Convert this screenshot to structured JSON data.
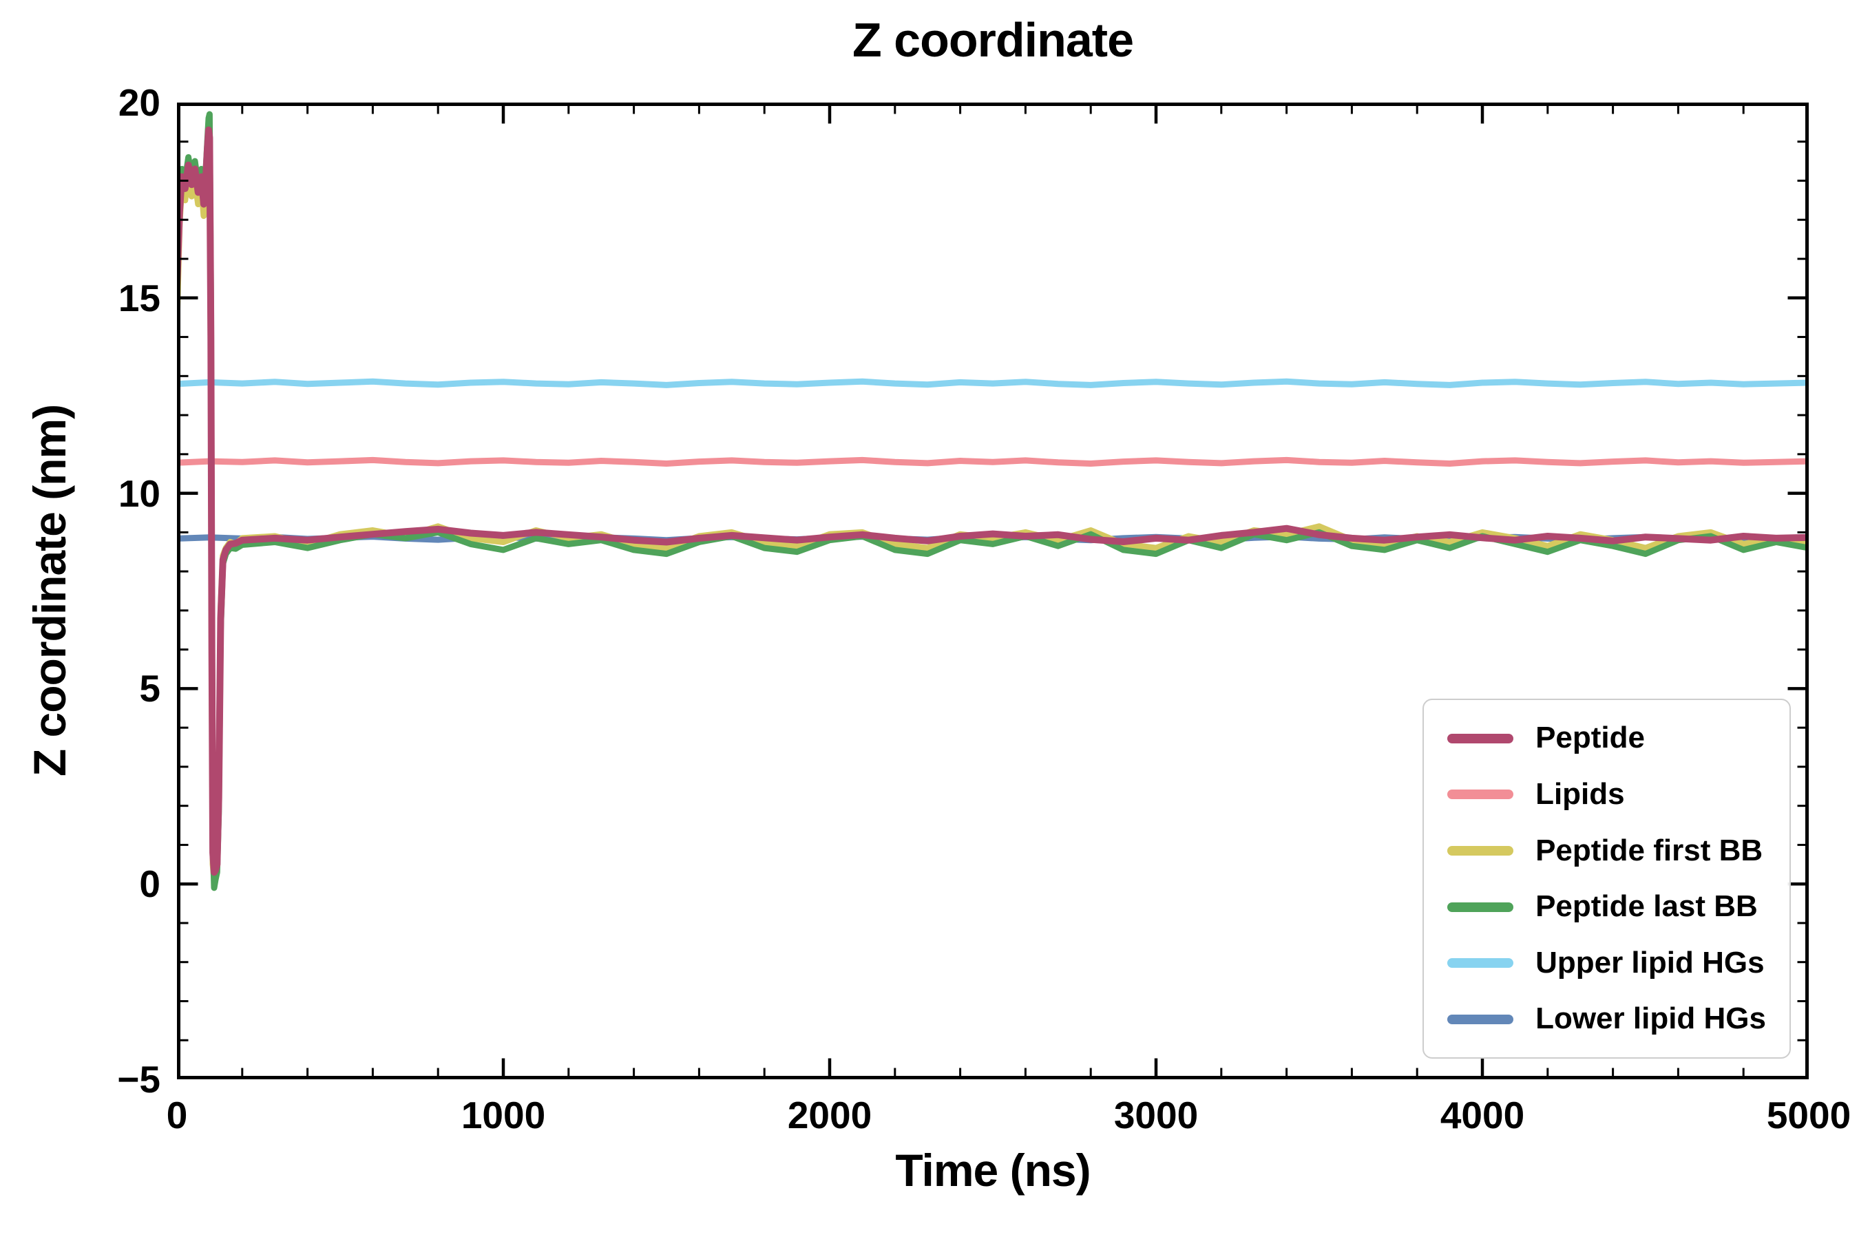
{
  "chart_data": {
    "type": "line",
    "title": "Z coordinate",
    "xlabel": "Time (ns)",
    "ylabel": "Z coordinate (nm)",
    "xlim": [
      0,
      5000
    ],
    "ylim": [
      -5,
      20
    ],
    "xticks": [
      0,
      1000,
      2000,
      3000,
      4000,
      5000
    ],
    "xtick_labels": [
      "0",
      "1000",
      "2000",
      "3000",
      "4000",
      "5000"
    ],
    "yticks": [
      -5,
      0,
      5,
      10,
      15,
      20
    ],
    "ytick_labels": [
      "−5",
      "0",
      "5",
      "10",
      "15",
      "20"
    ],
    "minor_x_step": 200,
    "minor_y_step": 1,
    "grid": false,
    "legend_position": "lower right",
    "axis_color": "#000000",
    "background": "#ffffff",
    "series": [
      {
        "name": "Peptide",
        "color": "#b0486e",
        "linewidth": 10,
        "x": [
          0,
          8,
          15,
          25,
          35,
          45,
          55,
          65,
          75,
          82,
          88,
          93,
          97,
          100,
          104,
          107,
          110,
          114,
          118,
          123,
          128,
          134,
          141,
          150,
          163,
          180,
          200,
          300,
          400,
          500,
          600,
          700,
          800,
          900,
          1000,
          1100,
          1200,
          1300,
          1400,
          1500,
          1600,
          1700,
          1800,
          1900,
          2000,
          2100,
          2200,
          2300,
          2400,
          2500,
          2600,
          2700,
          2800,
          2900,
          3000,
          3100,
          3200,
          3300,
          3400,
          3500,
          3600,
          3700,
          3800,
          3900,
          4000,
          4100,
          4200,
          4300,
          4400,
          4500,
          4600,
          4700,
          4800,
          4900,
          5000
        ],
        "y": [
          15.3,
          17.2,
          18.1,
          17.8,
          18.4,
          17.9,
          18.3,
          17.7,
          18.1,
          17.4,
          18.0,
          18.8,
          19.3,
          19.1,
          14.0,
          6.0,
          0.8,
          0.3,
          0.35,
          0.5,
          2.2,
          6.8,
          8.3,
          8.55,
          8.7,
          8.72,
          8.8,
          8.85,
          8.8,
          8.88,
          8.95,
          9.02,
          9.08,
          8.98,
          8.92,
          9.0,
          8.94,
          8.88,
          8.8,
          8.75,
          8.85,
          8.92,
          8.86,
          8.8,
          8.88,
          8.94,
          8.85,
          8.78,
          8.9,
          8.96,
          8.9,
          8.94,
          8.82,
          8.76,
          8.85,
          8.8,
          8.92,
          9.0,
          9.1,
          8.94,
          8.85,
          8.8,
          8.88,
          8.94,
          8.86,
          8.8,
          8.9,
          8.85,
          8.78,
          8.88,
          8.84,
          8.8,
          8.9,
          8.85,
          8.87
        ]
      },
      {
        "name": "Lipids",
        "color": "#f28e96",
        "linewidth": 9,
        "x": [
          0,
          100,
          200,
          300,
          400,
          500,
          600,
          700,
          800,
          900,
          1000,
          1100,
          1200,
          1300,
          1400,
          1500,
          1600,
          1700,
          1800,
          1900,
          2000,
          2100,
          2200,
          2300,
          2400,
          2500,
          2600,
          2700,
          2800,
          2900,
          3000,
          3100,
          3200,
          3300,
          3400,
          3500,
          3600,
          3700,
          3800,
          3900,
          4000,
          4100,
          4200,
          4300,
          4400,
          4500,
          4600,
          4700,
          4800,
          4900,
          5000
        ],
        "y": [
          10.78,
          10.82,
          10.8,
          10.84,
          10.79,
          10.82,
          10.85,
          10.8,
          10.77,
          10.82,
          10.84,
          10.8,
          10.78,
          10.83,
          10.8,
          10.76,
          10.81,
          10.84,
          10.8,
          10.78,
          10.82,
          10.85,
          10.8,
          10.77,
          10.83,
          10.8,
          10.84,
          10.79,
          10.76,
          10.81,
          10.84,
          10.8,
          10.77,
          10.82,
          10.85,
          10.8,
          10.78,
          10.83,
          10.79,
          10.76,
          10.82,
          10.84,
          10.8,
          10.77,
          10.81,
          10.84,
          10.79,
          10.82,
          10.78,
          10.8,
          10.82
        ]
      },
      {
        "name": "Peptide first BB",
        "color": "#d5c95f",
        "linewidth": 9,
        "x": [
          0,
          8,
          15,
          25,
          35,
          45,
          55,
          65,
          75,
          82,
          88,
          93,
          97,
          100,
          104,
          107,
          110,
          114,
          118,
          123,
          128,
          134,
          141,
          150,
          163,
          180,
          200,
          300,
          400,
          500,
          600,
          700,
          800,
          900,
          1000,
          1100,
          1200,
          1300,
          1400,
          1500,
          1600,
          1700,
          1800,
          1900,
          2000,
          2100,
          2200,
          2300,
          2400,
          2500,
          2600,
          2700,
          2800,
          2900,
          3000,
          3100,
          3200,
          3300,
          3400,
          3500,
          3600,
          3700,
          3800,
          3900,
          4000,
          4100,
          4200,
          4300,
          4400,
          4500,
          4600,
          4700,
          4800,
          4900,
          5000
        ],
        "y": [
          14.4,
          16.9,
          17.9,
          17.5,
          18.2,
          17.6,
          18.0,
          17.4,
          17.9,
          17.1,
          17.8,
          18.6,
          19.2,
          19.0,
          13.0,
          5.0,
          0.5,
          0.15,
          0.3,
          0.8,
          2.5,
          7.0,
          8.4,
          8.6,
          8.75,
          8.7,
          8.85,
          8.9,
          8.7,
          8.95,
          9.05,
          8.9,
          9.15,
          8.85,
          8.75,
          9.05,
          8.85,
          8.95,
          8.7,
          8.6,
          8.9,
          9.0,
          8.75,
          8.65,
          8.95,
          9.0,
          8.7,
          8.6,
          8.95,
          8.85,
          9.0,
          8.8,
          9.05,
          8.7,
          8.6,
          8.9,
          8.75,
          9.05,
          8.95,
          9.15,
          8.8,
          8.7,
          8.9,
          8.75,
          9.0,
          8.85,
          8.65,
          8.95,
          8.8,
          8.6,
          8.9,
          9.0,
          8.7,
          8.85,
          8.75
        ]
      },
      {
        "name": "Peptide last BB",
        "color": "#4fa35a",
        "linewidth": 9,
        "x": [
          0,
          8,
          15,
          25,
          35,
          45,
          55,
          65,
          75,
          82,
          88,
          93,
          97,
          100,
          104,
          107,
          110,
          114,
          118,
          123,
          128,
          134,
          141,
          150,
          163,
          180,
          200,
          300,
          400,
          500,
          600,
          700,
          800,
          900,
          1000,
          1100,
          1200,
          1300,
          1400,
          1500,
          1600,
          1700,
          1800,
          1900,
          2000,
          2100,
          2200,
          2300,
          2400,
          2500,
          2600,
          2700,
          2800,
          2900,
          3000,
          3100,
          3200,
          3300,
          3400,
          3500,
          3600,
          3700,
          3800,
          3900,
          4000,
          4100,
          4200,
          4300,
          4400,
          4500,
          4600,
          4700,
          4800,
          4900,
          5000
        ],
        "y": [
          15.6,
          17.5,
          18.3,
          18.0,
          18.6,
          18.1,
          18.5,
          17.9,
          18.3,
          17.6,
          18.2,
          19.0,
          19.6,
          19.7,
          15.0,
          7.0,
          1.0,
          -0.1,
          0.1,
          0.3,
          1.8,
          6.5,
          8.2,
          8.45,
          8.6,
          8.58,
          8.68,
          8.75,
          8.6,
          8.8,
          8.95,
          8.85,
          9.0,
          8.7,
          8.55,
          8.85,
          8.7,
          8.8,
          8.55,
          8.45,
          8.75,
          8.9,
          8.6,
          8.5,
          8.8,
          8.9,
          8.55,
          8.45,
          8.8,
          8.7,
          8.9,
          8.65,
          8.95,
          8.55,
          8.45,
          8.8,
          8.6,
          8.95,
          8.8,
          9.0,
          8.65,
          8.55,
          8.8,
          8.6,
          8.9,
          8.7,
          8.5,
          8.8,
          8.65,
          8.45,
          8.8,
          8.9,
          8.55,
          8.75,
          8.6
        ]
      },
      {
        "name": "Upper lipid HGs",
        "color": "#87d3f0",
        "linewidth": 9,
        "x": [
          0,
          100,
          200,
          300,
          400,
          500,
          600,
          700,
          800,
          900,
          1000,
          1100,
          1200,
          1300,
          1400,
          1500,
          1600,
          1700,
          1800,
          1900,
          2000,
          2100,
          2200,
          2300,
          2400,
          2500,
          2600,
          2700,
          2800,
          2900,
          3000,
          3100,
          3200,
          3300,
          3400,
          3500,
          3600,
          3700,
          3800,
          3900,
          4000,
          4100,
          4200,
          4300,
          4400,
          4500,
          4600,
          4700,
          4800,
          4900,
          5000
        ],
        "y": [
          12.8,
          12.84,
          12.81,
          12.85,
          12.8,
          12.83,
          12.86,
          12.81,
          12.78,
          12.83,
          12.85,
          12.81,
          12.79,
          12.84,
          12.81,
          12.77,
          12.82,
          12.85,
          12.81,
          12.79,
          12.83,
          12.86,
          12.81,
          12.78,
          12.84,
          12.81,
          12.85,
          12.8,
          12.77,
          12.82,
          12.85,
          12.81,
          12.78,
          12.83,
          12.86,
          12.81,
          12.79,
          12.84,
          12.8,
          12.77,
          12.83,
          12.85,
          12.81,
          12.78,
          12.82,
          12.85,
          12.8,
          12.83,
          12.79,
          12.81,
          12.83
        ]
      },
      {
        "name": "Lower lipid HGs",
        "color": "#6287b8",
        "linewidth": 9,
        "x": [
          0,
          100,
          200,
          300,
          400,
          500,
          600,
          700,
          800,
          900,
          1000,
          1100,
          1200,
          1300,
          1400,
          1500,
          1600,
          1700,
          1800,
          1900,
          2000,
          2100,
          2200,
          2300,
          2400,
          2500,
          2600,
          2700,
          2800,
          2900,
          3000,
          3100,
          3200,
          3300,
          3400,
          3500,
          3600,
          3700,
          3800,
          3900,
          4000,
          4100,
          4200,
          4300,
          4400,
          4500,
          4600,
          4700,
          4800,
          4900,
          5000
        ],
        "y": [
          8.84,
          8.87,
          8.84,
          8.88,
          8.83,
          8.86,
          8.89,
          8.84,
          8.81,
          8.86,
          8.88,
          8.84,
          8.82,
          8.87,
          8.84,
          8.8,
          8.85,
          8.88,
          8.84,
          8.82,
          8.86,
          8.89,
          8.84,
          8.81,
          8.87,
          8.84,
          8.88,
          8.83,
          8.8,
          8.85,
          8.88,
          8.84,
          8.81,
          8.86,
          8.89,
          8.84,
          8.82,
          8.87,
          8.83,
          8.8,
          8.86,
          8.88,
          8.84,
          8.81,
          8.85,
          8.88,
          8.83,
          8.86,
          8.82,
          8.84,
          8.86
        ]
      }
    ]
  }
}
